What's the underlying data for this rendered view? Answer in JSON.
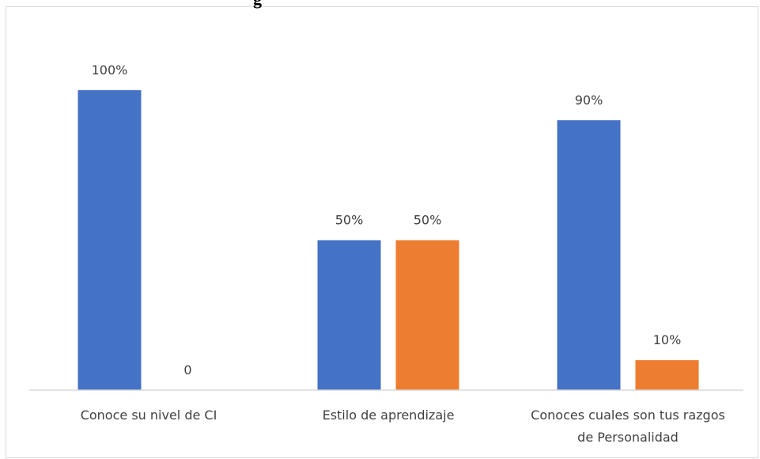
{
  "chart_data": {
    "type": "bar",
    "title_fragment": "g",
    "categories": [
      [
        "Conoce su nivel de CI"
      ],
      [
        "Estilo de aprendizaje"
      ],
      [
        "Conoces cuales son tus razgos",
        "de Personalidad"
      ]
    ],
    "series": [
      {
        "color": "#4472c4",
        "values": [
          100,
          50,
          90
        ],
        "labels": [
          "100%",
          "50%",
          "90%"
        ]
      },
      {
        "color": "#ed7d31",
        "values": [
          0,
          50,
          10
        ],
        "labels": [
          "0",
          "50%",
          "10%"
        ]
      }
    ],
    "ylim": [
      0,
      100
    ],
    "grid": false,
    "legend": "none"
  }
}
